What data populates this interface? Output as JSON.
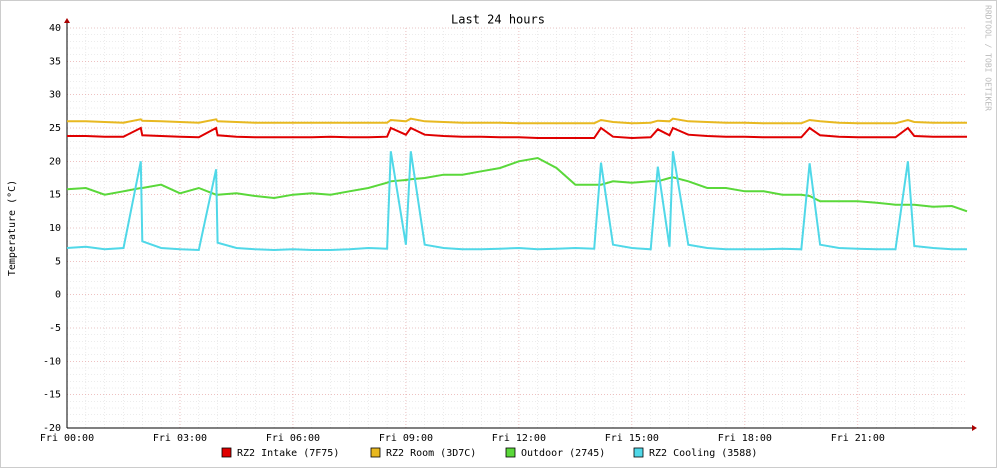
{
  "chart_data": {
    "type": "line",
    "title": "Last 24 hours",
    "y_label": "Temperature (°C)",
    "watermark": "RRDTOOL / TOBI OETIKER",
    "xlim": [
      0,
      23.9
    ],
    "ylim": [
      -20,
      40
    ],
    "xticks": [
      {
        "value": 0,
        "label": "Fri 00:00"
      },
      {
        "value": 3,
        "label": "Fri 03:00"
      },
      {
        "value": 6,
        "label": "Fri 06:00"
      },
      {
        "value": 9,
        "label": "Fri 09:00"
      },
      {
        "value": 12,
        "label": "Fri 12:00"
      },
      {
        "value": 15,
        "label": "Fri 15:00"
      },
      {
        "value": 18,
        "label": "Fri 18:00"
      },
      {
        "value": 21,
        "label": "Fri 21:00"
      }
    ],
    "yticks": [
      -20,
      -15,
      -10,
      -5,
      0,
      5,
      10,
      15,
      20,
      25,
      30,
      35,
      40
    ],
    "grid": true,
    "x": [
      0,
      0.5,
      1,
      1.5,
      1.96,
      2,
      2.5,
      3,
      3.5,
      3.96,
      4,
      4.5,
      5,
      5.5,
      6,
      6.5,
      7,
      7.5,
      8,
      8.5,
      8.6,
      9,
      9.13,
      9.5,
      10,
      10.5,
      11,
      11.5,
      12,
      12.5,
      13,
      13.5,
      14,
      14.18,
      14.5,
      15,
      15.5,
      15.69,
      16,
      16.09,
      16.5,
      17,
      17.5,
      18,
      18.5,
      19,
      19.5,
      19.72,
      20,
      20.5,
      21,
      21.5,
      22,
      22.33,
      22.5,
      23,
      23.5,
      23.9
    ],
    "series": [
      {
        "name": "RZ2 Intake (7F75)",
        "color": "#e00000",
        "values": [
          23.8,
          23.8,
          23.7,
          23.7,
          25,
          23.9,
          23.8,
          23.7,
          23.6,
          25,
          23.9,
          23.7,
          23.6,
          23.6,
          23.6,
          23.6,
          23.7,
          23.6,
          23.6,
          23.7,
          25,
          24,
          25,
          24,
          23.8,
          23.7,
          23.7,
          23.6,
          23.6,
          23.5,
          23.5,
          23.5,
          23.5,
          25,
          23.7,
          23.5,
          23.6,
          24.8,
          23.9,
          25,
          24,
          23.8,
          23.7,
          23.7,
          23.6,
          23.6,
          23.6,
          25,
          23.9,
          23.7,
          23.6,
          23.6,
          23.6,
          25,
          23.8,
          23.7,
          23.7,
          23.7
        ]
      },
      {
        "name": "RZ2 Room (3D7C)",
        "color": "#e8b820",
        "values": [
          26,
          26,
          25.9,
          25.8,
          26.3,
          26.1,
          26,
          25.9,
          25.8,
          26.3,
          26,
          25.9,
          25.8,
          25.8,
          25.8,
          25.8,
          25.8,
          25.8,
          25.8,
          25.8,
          26.2,
          26,
          26.4,
          26,
          25.9,
          25.8,
          25.8,
          25.8,
          25.7,
          25.7,
          25.7,
          25.7,
          25.7,
          26.2,
          25.9,
          25.7,
          25.8,
          26.1,
          26,
          26.4,
          26,
          25.9,
          25.8,
          25.8,
          25.7,
          25.7,
          25.7,
          26.2,
          26,
          25.8,
          25.7,
          25.7,
          25.7,
          26.2,
          25.9,
          25.8,
          25.8,
          25.8
        ]
      },
      {
        "name": "Outdoor (2745)",
        "color": "#5ad83a",
        "values": [
          15.8,
          16,
          15,
          15.5,
          16,
          16,
          16.5,
          15.2,
          16,
          15,
          15,
          15.2,
          14.8,
          14.5,
          15,
          15.2,
          15,
          15.5,
          16,
          16.8,
          17,
          17.2,
          17.3,
          17.5,
          18,
          18,
          18.5,
          19,
          20,
          20.5,
          19,
          16.5,
          16.5,
          16.5,
          17,
          16.8,
          17,
          17,
          17.5,
          17.6,
          17,
          16,
          16,
          15.5,
          15.5,
          15,
          15,
          14.8,
          14,
          14,
          14,
          13.8,
          13.5,
          13.5,
          13.5,
          13.2,
          13.3,
          12.5
        ]
      },
      {
        "name": "RZ2 Cooling (3588)",
        "color": "#50d8e8",
        "values": [
          7,
          7.2,
          6.8,
          7,
          20,
          8,
          7,
          6.8,
          6.7,
          18.8,
          7.8,
          7,
          6.8,
          6.7,
          6.8,
          6.7,
          6.7,
          6.8,
          7,
          6.9,
          21.5,
          7.5,
          21.5,
          7.5,
          7,
          6.8,
          6.8,
          6.9,
          7,
          6.8,
          6.9,
          7,
          6.9,
          19.8,
          7.5,
          7,
          6.8,
          19.2,
          7.2,
          21.5,
          7.5,
          7,
          6.8,
          6.8,
          6.8,
          6.9,
          6.8,
          19.7,
          7.5,
          7,
          6.9,
          6.8,
          6.8,
          20,
          7.3,
          7,
          6.8,
          6.8
        ]
      }
    ]
  }
}
